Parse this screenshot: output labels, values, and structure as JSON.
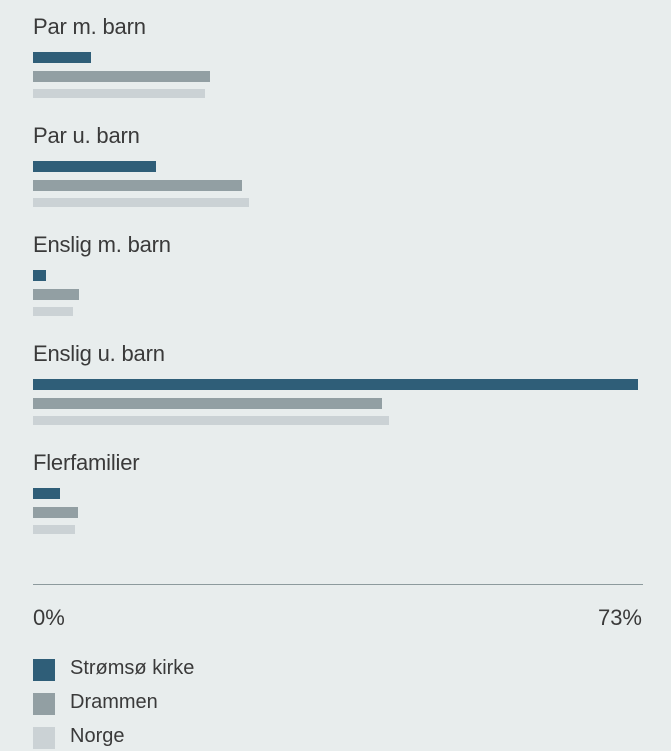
{
  "chart_data": {
    "type": "bar",
    "orientation": "horizontal",
    "categories": [
      "Par m. barn",
      "Par u. barn",
      "Enslig m. barn",
      "Enslig u. barn",
      "Flerfamilier"
    ],
    "series": [
      {
        "name": "Strømsø kirke",
        "color": "#2f5e78",
        "values": [
          7,
          14.8,
          1.6,
          73,
          3.2
        ]
      },
      {
        "name": "Drammen",
        "color": "#929fa3",
        "values": [
          21.4,
          25.2,
          5.5,
          42.1,
          5.4
        ]
      },
      {
        "name": "Norge",
        "color": "#cbd2d5",
        "values": [
          20.7,
          26.1,
          4.8,
          43,
          5.1
        ]
      }
    ],
    "xlim": [
      0,
      73
    ],
    "x_tick_labels": [
      "0%",
      "73%"
    ],
    "legend_position": "bottom-left"
  }
}
